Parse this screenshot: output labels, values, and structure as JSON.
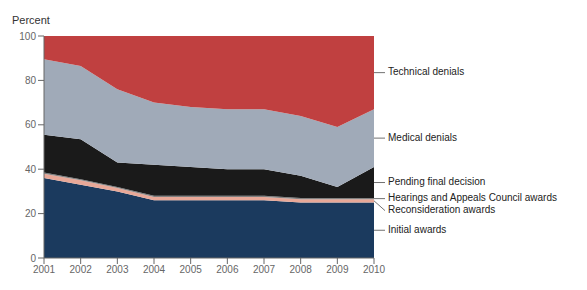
{
  "chart_data": {
    "type": "area",
    "stacked": true,
    "ylabel": "Percent",
    "x": [
      2001,
      2002,
      2003,
      2004,
      2005,
      2006,
      2007,
      2008,
      2009,
      2010
    ],
    "xlim": [
      2001,
      2010
    ],
    "xticks": [
      2001,
      2002,
      2003,
      2004,
      2005,
      2006,
      2007,
      2008,
      2009,
      2010
    ],
    "ylim": [
      0,
      100
    ],
    "yticks": [
      0,
      20,
      40,
      60,
      80,
      100
    ],
    "grid": false,
    "series": [
      {
        "name": "Initial awards",
        "color": "#1b3a5e",
        "values": [
          36,
          33,
          30,
          26,
          26,
          26,
          26,
          25,
          25,
          25
        ]
      },
      {
        "name": "Reconsideration awards",
        "color": "#e8a898",
        "values": [
          2,
          2,
          1.5,
          1.5,
          1.5,
          1.5,
          1.5,
          1.5,
          1.5,
          1.5
        ]
      },
      {
        "name": "Hearings and Appeals Council awards",
        "color": "#808080",
        "values": [
          0.5,
          0.5,
          0.5,
          0.5,
          0.5,
          0.5,
          0.5,
          0.5,
          0.5,
          0.5
        ]
      },
      {
        "name": "Pending final decision",
        "color": "#1a1a1a",
        "values": [
          17,
          18,
          11,
          14,
          13,
          12,
          12,
          10,
          5,
          14
        ]
      },
      {
        "name": "Medical denials",
        "color": "#a0aab8",
        "values": [
          34,
          33,
          33,
          28,
          27,
          27,
          27,
          27,
          27,
          26
        ]
      },
      {
        "name": "Technical denials",
        "color": "#c04040",
        "values": [
          10.5,
          13.5,
          24,
          30,
          32,
          33,
          33,
          36,
          41,
          33
        ]
      }
    ]
  }
}
